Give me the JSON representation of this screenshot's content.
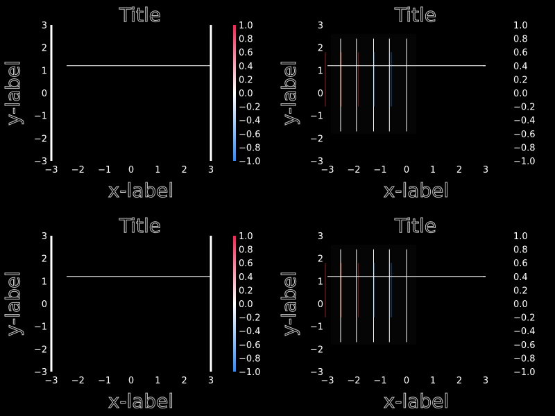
{
  "figure": {
    "background": "#000000",
    "foreground": "#ffffff"
  },
  "chart_data": [
    {
      "panel": "top-left",
      "type": "line",
      "title": "Title",
      "xlabel": "x-label",
      "ylabel": "y-label",
      "xlim": [
        -3,
        3
      ],
      "ylim": [
        -3,
        3
      ],
      "xticks": [
        "−3",
        "−2",
        "−1",
        "0",
        "1",
        "2",
        "3"
      ],
      "yticks": [
        "−3",
        "−2",
        "−1",
        "0",
        "1",
        "2",
        "3"
      ],
      "line": {
        "y": 1.2,
        "color": "#ffffff"
      },
      "colorbar": {
        "range": [
          -1,
          1
        ],
        "ticks": [
          "1.0",
          "0.8",
          "0.6",
          "0.4",
          "0.2",
          "0.0",
          "−0.2",
          "−0.4",
          "−0.6",
          "−0.8",
          "−1.0"
        ],
        "colors": [
          "#ff2050",
          "#ffffff",
          "#2a8cff"
        ]
      }
    },
    {
      "panel": "top-right",
      "type": "heatmap",
      "title": "Title",
      "xlabel": "x-label",
      "ylabel": "y-label",
      "xlim": [
        -3,
        3
      ],
      "ylim": [
        -3,
        3
      ],
      "xticks": [
        "−3",
        "−2",
        "−1",
        "0",
        "1",
        "2",
        "3"
      ],
      "yticks": [
        "−3",
        "−2",
        "−1",
        "0",
        "1",
        "2",
        "3"
      ],
      "line": {
        "y": 1.2,
        "color": "#ffffff"
      },
      "vlines": [
        -2.5,
        -1.9,
        -1.25,
        -0.65,
        0
      ],
      "colorbar": {
        "range": [
          -1,
          1
        ],
        "ticks": [
          "1.0",
          "0.8",
          "0.6",
          "0.4",
          "0.2",
          "0.0",
          "−0.2",
          "−0.4",
          "−0.6",
          "−0.8",
          "−1.0"
        ],
        "colors": [
          "#000000",
          "#000000",
          "#000000"
        ]
      }
    },
    {
      "panel": "bottom-left",
      "type": "line",
      "title": "Title",
      "xlabel": "x-label",
      "ylabel": "y-label",
      "xlim": [
        -3,
        3
      ],
      "ylim": [
        -3,
        3
      ],
      "xticks": [
        "−3",
        "−2",
        "−1",
        "0",
        "1",
        "2",
        "3"
      ],
      "yticks": [
        "−3",
        "−2",
        "−1",
        "0",
        "1",
        "2",
        "3"
      ],
      "line": {
        "y": 1.2,
        "color": "#ffffff"
      },
      "colorbar": {
        "range": [
          -1,
          1
        ],
        "ticks": [
          "1.0",
          "0.8",
          "0.6",
          "0.4",
          "0.2",
          "0.0",
          "−0.2",
          "−0.4",
          "−0.6",
          "−0.8",
          "−1.0"
        ],
        "colors": [
          "#ff2050",
          "#ffffff",
          "#2a8cff"
        ]
      }
    },
    {
      "panel": "bottom-right",
      "type": "heatmap",
      "title": "Title",
      "xlabel": "x-label",
      "ylabel": "y-label",
      "xlim": [
        -3,
        3
      ],
      "ylim": [
        -3,
        3
      ],
      "xticks": [
        "−3",
        "−2",
        "−1",
        "0",
        "1",
        "2",
        "3"
      ],
      "yticks": [
        "−3",
        "−2",
        "−1",
        "0",
        "1",
        "2",
        "3"
      ],
      "line": {
        "y": 1.2,
        "color": "#ffffff"
      },
      "vlines": [
        -2.5,
        -1.9,
        -1.25,
        -0.65,
        0
      ],
      "colorbar": {
        "range": [
          -1,
          1
        ],
        "ticks": [
          "1.0",
          "0.8",
          "0.6",
          "0.4",
          "0.2",
          "0.0",
          "−0.2",
          "−0.4",
          "−0.6",
          "−0.8",
          "−1.0"
        ],
        "colors": [
          "#000000",
          "#000000",
          "#000000"
        ]
      }
    }
  ]
}
